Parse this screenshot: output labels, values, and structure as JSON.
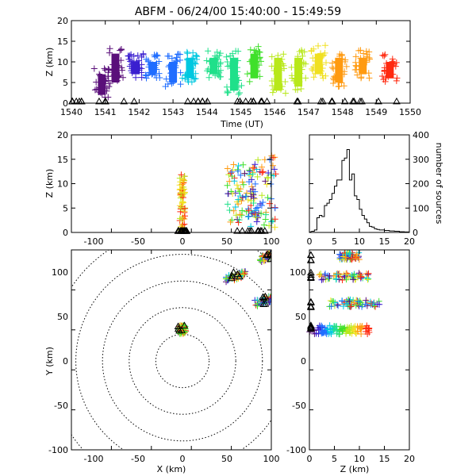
{
  "title": "ABFM - 06/24/00 15:40:00 - 15:49:59",
  "panels": {
    "time_height": {
      "ylabel": "Z (km)",
      "xlabel": "Time (UT)",
      "x_ticks": [
        "1540",
        "1541",
        "1542",
        "1543",
        "1544",
        "1545",
        "1546",
        "1547",
        "1548",
        "1549",
        "1550"
      ],
      "y_ticks": [
        "0",
        "5",
        "10",
        "15",
        "20"
      ]
    },
    "xz": {
      "ylabel": "Z (km)",
      "x_ticks": [
        "-100",
        "-50",
        "0",
        "50",
        "100"
      ],
      "y_ticks": [
        "0",
        "5",
        "10",
        "15",
        "20"
      ]
    },
    "hist": {
      "ylabel": "number of sources",
      "x_ticks": [
        "0",
        "5",
        "10",
        "15",
        "20"
      ],
      "y_ticks": [
        "0",
        "100",
        "200",
        "300",
        "400"
      ]
    },
    "plan": {
      "xlabel": "X (km)",
      "ylabel": "Y (km)",
      "x_ticks": [
        "-100",
        "-50",
        "0",
        "50",
        "100"
      ],
      "y_ticks": [
        "-100",
        "-50",
        "0",
        "50",
        "100"
      ]
    },
    "yz": {
      "xlabel": "Z (km)",
      "x_ticks": [
        "0",
        "5",
        "10",
        "15",
        "20"
      ],
      "y_ticks": [
        "-100",
        "-50",
        "0",
        "50",
        "100"
      ]
    }
  },
  "colors": {
    "time_scale": [
      "#5a0f7a",
      "#3a1fcf",
      "#1f6dff",
      "#00c8e0",
      "#1fe08a",
      "#3fe02a",
      "#b8e81a",
      "#f0e020",
      "#ff9a10",
      "#ff2a10"
    ],
    "station_marker": "#000000",
    "range_ring": "#000000"
  },
  "chart_data": [
    {
      "name": "time-height",
      "type": "scatter",
      "x_label": "Time (UT)",
      "y_label": "Z (km)",
      "xlim": [
        1540,
        1550
      ],
      "ylim": [
        0,
        20
      ],
      "clusters": [
        {
          "t": 1540.9,
          "z": [
            1,
            9
          ]
        },
        {
          "t": 1541.3,
          "z": [
            4,
            14
          ]
        },
        {
          "t": 1541.9,
          "z": [
            6,
            12
          ]
        },
        {
          "t": 1542.4,
          "z": [
            6,
            12
          ]
        },
        {
          "t": 1543.0,
          "z": [
            4,
            12
          ]
        },
        {
          "t": 1543.5,
          "z": [
            5,
            13
          ]
        },
        {
          "t": 1544.2,
          "z": [
            6,
            13
          ]
        },
        {
          "t": 1544.8,
          "z": [
            2,
            13
          ]
        },
        {
          "t": 1545.4,
          "z": [
            5,
            14
          ]
        },
        {
          "t": 1546.1,
          "z": [
            2,
            13
          ]
        },
        {
          "t": 1546.7,
          "z": [
            3,
            13
          ]
        },
        {
          "t": 1547.3,
          "z": [
            6,
            14
          ]
        },
        {
          "t": 1547.9,
          "z": [
            4,
            13
          ]
        },
        {
          "t": 1548.6,
          "z": [
            6,
            13
          ]
        },
        {
          "t": 1549.4,
          "z": [
            5,
            12
          ]
        }
      ],
      "station_markers_z": 0
    },
    {
      "name": "x-z projection",
      "type": "scatter",
      "x_label": "",
      "y_label": "Z (km)",
      "xlim": [
        -125,
        100
      ],
      "ylim": [
        0,
        20
      ],
      "clusters": [
        {
          "x": 0,
          "z": [
            0,
            12
          ]
        },
        {
          "x": 65,
          "z": [
            2,
            14
          ]
        },
        {
          "x": 90,
          "z": [
            1,
            16
          ]
        }
      ]
    },
    {
      "name": "height histogram",
      "type": "bar",
      "x_label": "",
      "y_label": "number of sources",
      "xlim": [
        0,
        20
      ],
      "ylim": [
        0,
        400
      ],
      "bins_km": [
        0.5,
        1,
        1.5,
        2,
        2.5,
        3,
        3.5,
        4,
        4.5,
        5,
        5.5,
        6,
        6.5,
        7,
        7.5,
        8,
        8.5,
        9,
        9.5,
        10,
        10.5,
        11,
        11.5,
        12,
        12.5,
        13,
        13.5,
        14,
        15,
        16,
        17,
        18,
        19
      ],
      "values": [
        5,
        10,
        60,
        70,
        65,
        110,
        120,
        135,
        160,
        190,
        215,
        215,
        295,
        305,
        340,
        215,
        240,
        150,
        135,
        95,
        70,
        55,
        40,
        25,
        22,
        15,
        12,
        10,
        8,
        6,
        5,
        3,
        2
      ]
    },
    {
      "name": "plan view",
      "type": "scatter",
      "x_label": "X (km)",
      "y_label": "Y (km)",
      "xlim": [
        -125,
        100
      ],
      "ylim": [
        -100,
        125
      ],
      "range_rings_km": [
        30,
        60,
        90,
        120,
        150
      ],
      "clusters": [
        {
          "x": 0,
          "y": 35
        },
        {
          "x": 60,
          "y": 95
        },
        {
          "x": 92,
          "y": 68
        },
        {
          "x": 98,
          "y": 118
        }
      ]
    },
    {
      "name": "y-z projection",
      "type": "scatter",
      "x_label": "Z (km)",
      "y_label": "",
      "xlim": [
        0,
        20
      ],
      "ylim": [
        -100,
        125
      ],
      "clusters": [
        {
          "y": 35,
          "z": [
            0,
            12
          ]
        },
        {
          "y": 65,
          "z": [
            4,
            14
          ]
        },
        {
          "y": 95,
          "z": [
            2,
            12
          ]
        },
        {
          "y": 118,
          "z": [
            6,
            10
          ]
        }
      ]
    }
  ]
}
